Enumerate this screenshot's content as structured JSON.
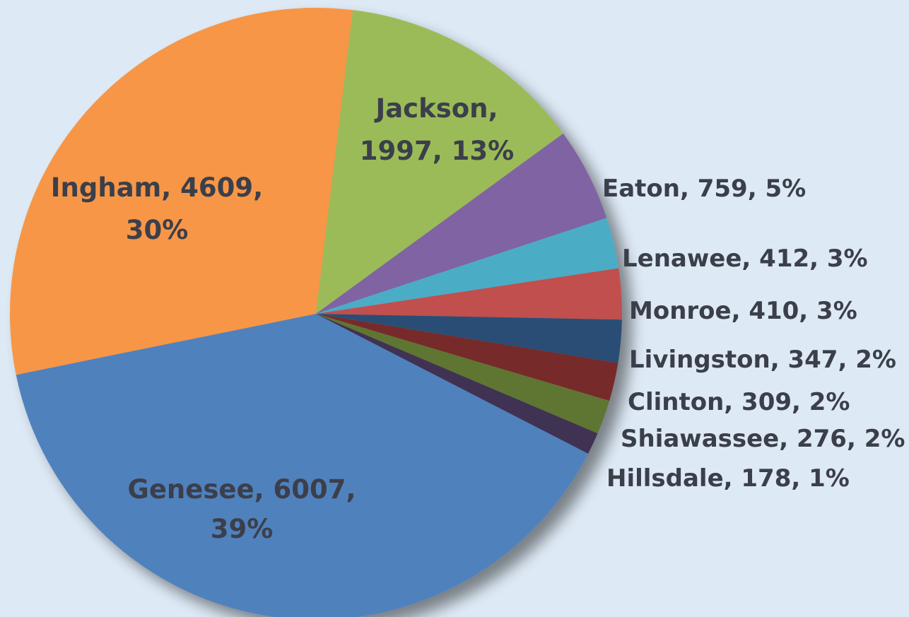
{
  "chart_data": {
    "type": "pie",
    "title": "",
    "colors_note": "slice colors listed per slice",
    "slices": [
      {
        "label": "Genesee",
        "value": 6007,
        "percent": "39%",
        "text": "Genesee, 6007, 39%",
        "color": "#4f81bd"
      },
      {
        "label": "Ingham",
        "value": 4609,
        "percent": "30%",
        "text": "Ingham, 4609, 30%",
        "color": "#f79646"
      },
      {
        "label": "Jackson",
        "value": 1997,
        "percent": "13%",
        "text": "Jackson, 1997, 13%",
        "color": "#9bbb59"
      },
      {
        "label": "Eaton",
        "value": 759,
        "percent": "5%",
        "text": "Eaton, 759, 5%",
        "color": "#8064a2"
      },
      {
        "label": "Lenawee",
        "value": 412,
        "percent": "3%",
        "text": "Lenawee, 412, 3%",
        "color": "#4bacc6"
      },
      {
        "label": "Monroe",
        "value": 410,
        "percent": "3%",
        "text": "Monroe, 410, 3%",
        "color": "#c0504d"
      },
      {
        "label": "Livingston",
        "value": 347,
        "percent": "2%",
        "text": "Livingston, 347, 2%",
        "color": "#2c4d75"
      },
      {
        "label": "Clinton",
        "value": 309,
        "percent": "2%",
        "text": "Clinton, 309, 2%",
        "color": "#772c2a"
      },
      {
        "label": "Shiawassee",
        "value": 276,
        "percent": "2%",
        "text": "Shiawassee, 276, 2%",
        "color": "#5f7530"
      },
      {
        "label": "Hillsdale",
        "value": 178,
        "percent": "1%",
        "text": "Hillsdale, 178, 1%",
        "color": "#403152"
      }
    ],
    "legend": "none",
    "labels": "data labels on and beside slices"
  }
}
